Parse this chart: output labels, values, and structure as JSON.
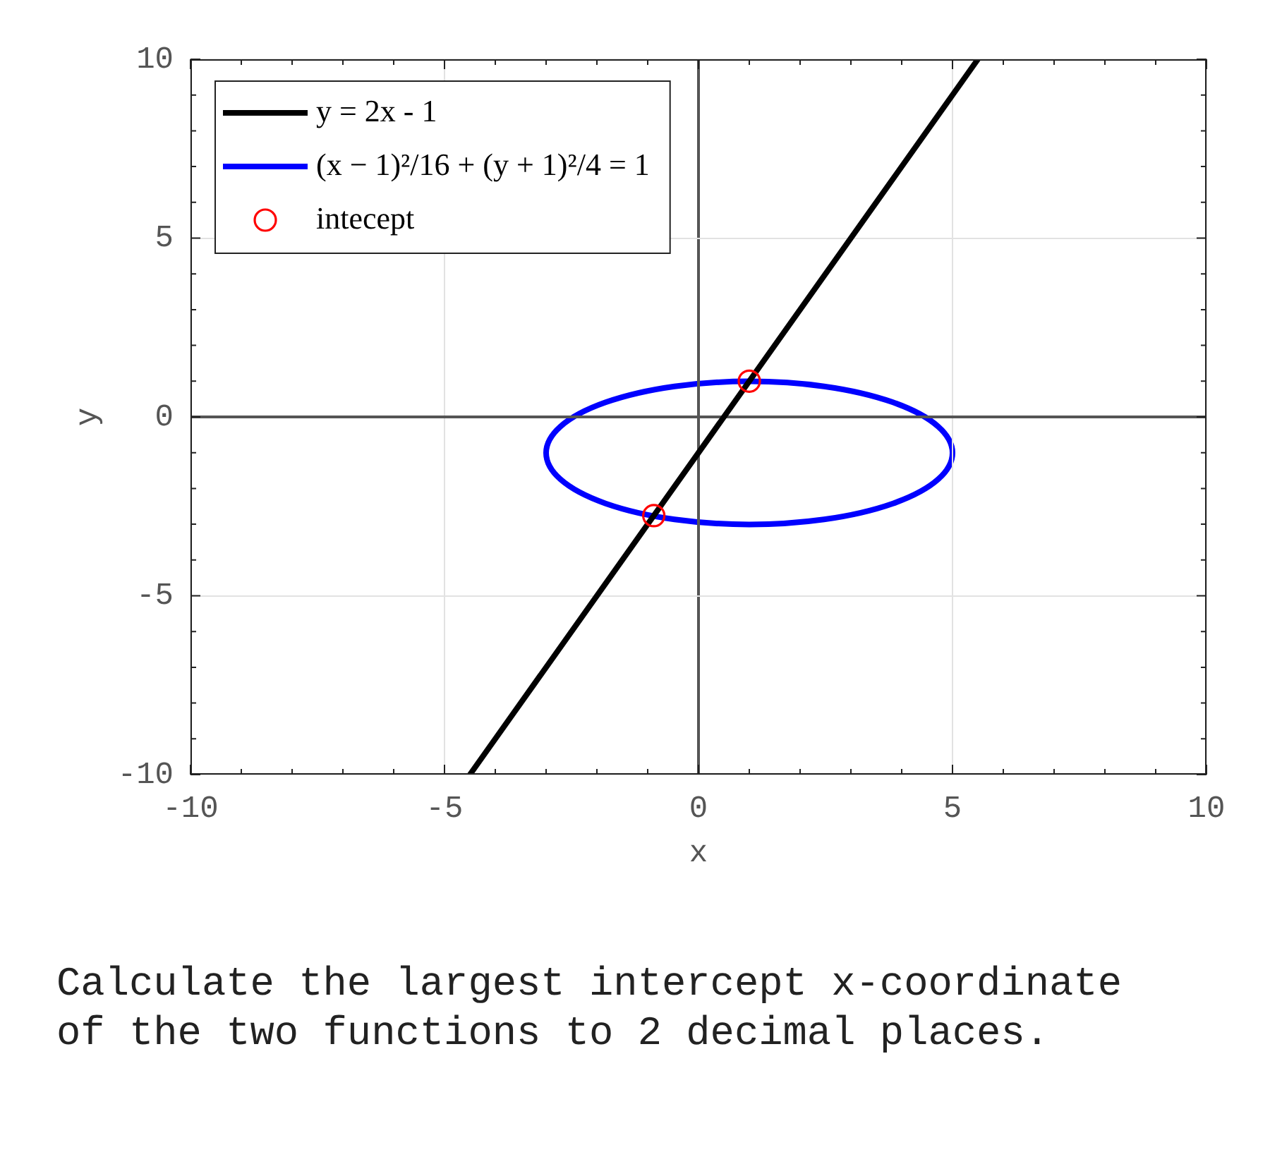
{
  "chart_data": {
    "type": "line",
    "xlabel": "x",
    "ylabel": "y",
    "xlim": [
      -10,
      10
    ],
    "ylim": [
      -10,
      10
    ],
    "xticks": [
      -10,
      {
        "value": -9,
        "label": null
      },
      {
        "value": -8,
        "label": null
      },
      {
        "value": -7,
        "label": null
      },
      {
        "value": -6,
        "label": null
      },
      -5,
      {
        "value": -4,
        "label": null
      },
      {
        "value": -3,
        "label": null
      },
      {
        "value": -2,
        "label": null
      },
      {
        "value": -1,
        "label": null
      },
      0,
      {
        "value": 1,
        "label": null
      },
      {
        "value": 2,
        "label": null
      },
      {
        "value": 3,
        "label": null
      },
      {
        "value": 4,
        "label": null
      },
      5,
      {
        "value": 6,
        "label": null
      },
      {
        "value": 7,
        "label": null
      },
      {
        "value": 8,
        "label": null
      },
      {
        "value": 9,
        "label": null
      },
      10
    ],
    "yticks": [
      -10,
      {
        "value": -9,
        "label": null
      },
      {
        "value": -8,
        "label": null
      },
      {
        "value": -7,
        "label": null
      },
      {
        "value": -6,
        "label": null
      },
      -5,
      {
        "value": -4,
        "label": null
      },
      {
        "value": -3,
        "label": null
      },
      {
        "value": -2,
        "label": null
      },
      {
        "value": -1,
        "label": null
      },
      0,
      {
        "value": 1,
        "label": null
      },
      {
        "value": 2,
        "label": null
      },
      {
        "value": 3,
        "label": null
      },
      {
        "value": 4,
        "label": null
      },
      5,
      {
        "value": 6,
        "label": null
      },
      {
        "value": 7,
        "label": null
      },
      {
        "value": 8,
        "label": null
      },
      {
        "value": 9,
        "label": null
      },
      10
    ],
    "grid": true,
    "legend": "top left",
    "series": [
      {
        "name": "y = 2x - 1",
        "color": "#000000",
        "x": [
          -4.5,
          5.5
        ],
        "values": [
          -10,
          10
        ]
      },
      {
        "name": "(x − 1)²/16 + (y + 1)²/4 = 1",
        "color": "#0000ff"
      },
      {
        "name": "intecept",
        "type": "scatter",
        "marker": "circle",
        "color": "#ff0000",
        "x": [
          1,
          -0.88
        ],
        "values": [
          1,
          -2.76
        ]
      }
    ],
    "annotations": [
      "Calculate the largest intercept x-coordinate of the two functions to 2 decimal places."
    ]
  }
}
